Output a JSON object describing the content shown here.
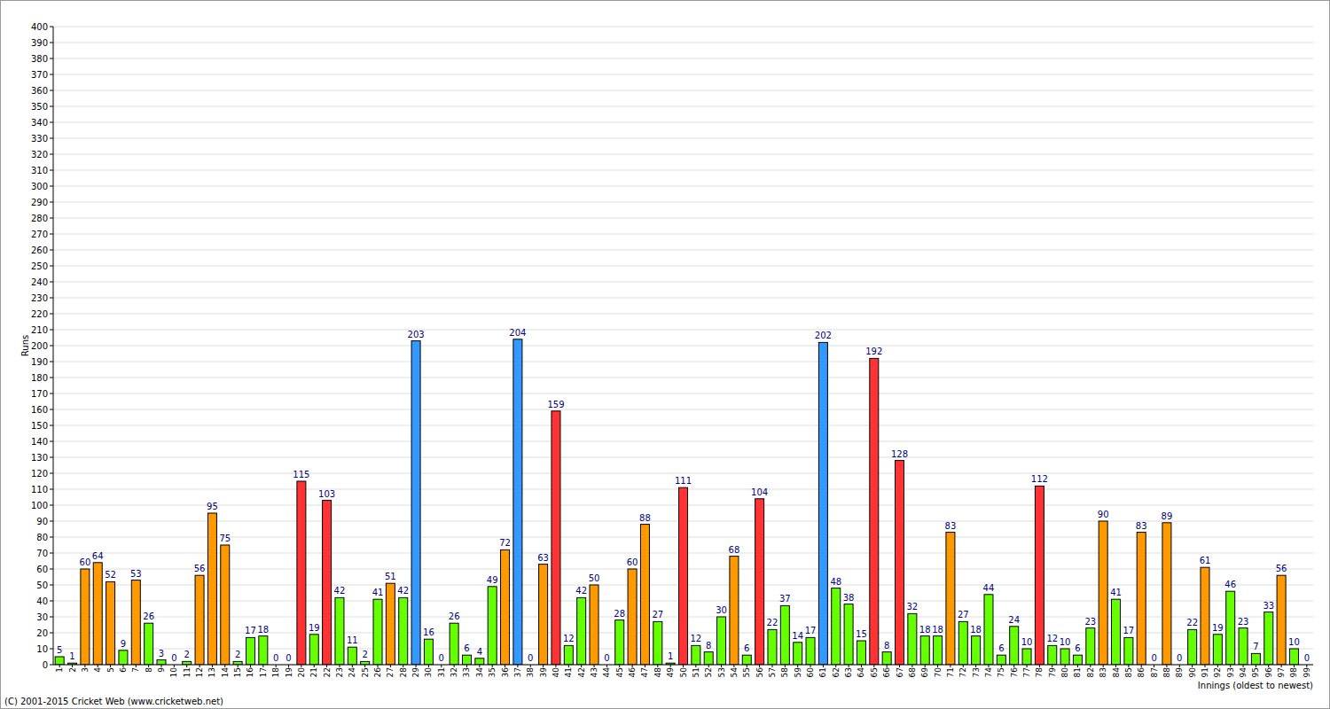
{
  "chart_data": {
    "type": "bar",
    "y_label": "Runs",
    "x_label": "Innings (oldest to newest)",
    "footer": "(C) 2001-2015 Cricket Web (www.cricketweb.net)",
    "categories": [
      "1",
      "2",
      "3",
      "4",
      "5",
      "6",
      "7",
      "8",
      "9",
      "10",
      "11",
      "12",
      "13",
      "14",
      "15",
      "16",
      "17",
      "18",
      "19",
      "20",
      "21",
      "22",
      "23",
      "24",
      "25",
      "26",
      "27",
      "28",
      "29",
      "30",
      "31",
      "32",
      "33",
      "34",
      "35",
      "36",
      "37",
      "38",
      "39",
      "40",
      "41",
      "42",
      "43",
      "44",
      "45",
      "46",
      "47",
      "48",
      "49",
      "50",
      "51",
      "52",
      "53",
      "54",
      "55",
      "56",
      "57",
      "58",
      "59",
      "60",
      "61",
      "62",
      "63",
      "64",
      "65",
      "66",
      "67",
      "68",
      "69",
      "70",
      "71",
      "72",
      "73",
      "74",
      "75",
      "76",
      "77",
      "78",
      "79",
      "80",
      "81",
      "82",
      "83",
      "84",
      "85",
      "86",
      "87",
      "88",
      "89",
      "90",
      "91",
      "92",
      "93",
      "94",
      "95",
      "96",
      "97",
      "98",
      "99"
    ],
    "values": [
      5,
      1,
      60,
      64,
      52,
      9,
      53,
      26,
      3,
      0,
      2,
      56,
      95,
      75,
      2,
      17,
      18,
      0,
      0,
      115,
      19,
      103,
      42,
      11,
      2,
      41,
      51,
      42,
      203,
      16,
      0,
      26,
      6,
      4,
      49,
      72,
      204,
      0,
      63,
      159,
      12,
      42,
      50,
      0,
      28,
      60,
      88,
      27,
      1,
      111,
      12,
      8,
      30,
      68,
      6,
      104,
      22,
      37,
      14,
      17,
      202,
      48,
      38,
      15,
      192,
      8,
      128,
      32,
      18,
      18,
      83,
      27,
      18,
      44,
      6,
      24,
      10,
      112,
      12,
      10,
      6,
      23,
      90,
      41,
      17,
      83,
      0,
      89,
      0,
      22,
      61,
      19,
      46,
      23,
      7,
      33,
      56,
      10,
      0
    ],
    "colors": [
      "#66ff00",
      "#66ff00",
      "#ff9900",
      "#ff9900",
      "#ff9900",
      "#66ff00",
      "#ff9900",
      "#66ff00",
      "#66ff00",
      "#66ff00",
      "#66ff00",
      "#ff9900",
      "#ff9900",
      "#ff9900",
      "#66ff00",
      "#66ff00",
      "#66ff00",
      "#66ff00",
      "#66ff00",
      "#ff3333",
      "#66ff00",
      "#ff3333",
      "#66ff00",
      "#66ff00",
      "#66ff00",
      "#66ff00",
      "#ff9900",
      "#66ff00",
      "#3399ff",
      "#66ff00",
      "#66ff00",
      "#66ff00",
      "#66ff00",
      "#66ff00",
      "#66ff00",
      "#ff9900",
      "#3399ff",
      "#66ff00",
      "#ff9900",
      "#ff3333",
      "#66ff00",
      "#66ff00",
      "#ff9900",
      "#66ff00",
      "#66ff00",
      "#ff9900",
      "#ff9900",
      "#66ff00",
      "#66ff00",
      "#ff3333",
      "#66ff00",
      "#66ff00",
      "#66ff00",
      "#ff9900",
      "#66ff00",
      "#ff3333",
      "#66ff00",
      "#66ff00",
      "#66ff00",
      "#66ff00",
      "#3399ff",
      "#66ff00",
      "#66ff00",
      "#66ff00",
      "#ff3333",
      "#66ff00",
      "#ff3333",
      "#66ff00",
      "#66ff00",
      "#66ff00",
      "#ff9900",
      "#66ff00",
      "#66ff00",
      "#66ff00",
      "#66ff00",
      "#66ff00",
      "#66ff00",
      "#ff3333",
      "#66ff00",
      "#66ff00",
      "#66ff00",
      "#66ff00",
      "#ff9900",
      "#66ff00",
      "#66ff00",
      "#ff9900",
      "#66ff00",
      "#ff9900",
      "#66ff00",
      "#66ff00",
      "#ff9900",
      "#66ff00",
      "#66ff00",
      "#66ff00",
      "#66ff00",
      "#66ff00",
      "#ff9900",
      "#66ff00",
      "#66ff00"
    ],
    "ylim": [
      0,
      400
    ],
    "yticks": [
      0,
      10,
      20,
      30,
      40,
      50,
      60,
      70,
      80,
      90,
      100,
      110,
      120,
      130,
      140,
      150,
      160,
      170,
      180,
      190,
      200,
      210,
      220,
      230,
      240,
      250,
      260,
      270,
      280,
      290,
      300,
      310,
      320,
      330,
      340,
      350,
      360,
      370,
      380,
      390,
      400
    ],
    "grid": true,
    "data_labels": true
  }
}
